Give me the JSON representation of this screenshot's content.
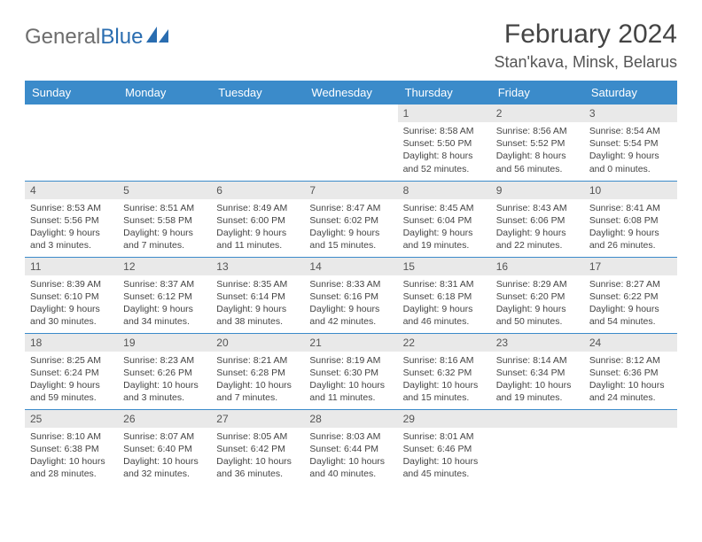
{
  "logo": {
    "word1": "General",
    "word2": "Blue"
  },
  "title": "February 2024",
  "location": "Stan'kava, Minsk, Belarus",
  "colors": {
    "header_bg": "#3b8bca",
    "header_fg": "#ffffff",
    "daynum_bg": "#e9e9e9",
    "border": "#3b8bca",
    "logo_blue": "#2a6db0",
    "logo_gray": "#6d6d6d"
  },
  "daysOfWeek": [
    "Sunday",
    "Monday",
    "Tuesday",
    "Wednesday",
    "Thursday",
    "Friday",
    "Saturday"
  ],
  "weeks": [
    [
      null,
      null,
      null,
      null,
      {
        "n": "1",
        "sr": "8:58 AM",
        "ss": "5:50 PM",
        "dl": "8 hours and 52 minutes."
      },
      {
        "n": "2",
        "sr": "8:56 AM",
        "ss": "5:52 PM",
        "dl": "8 hours and 56 minutes."
      },
      {
        "n": "3",
        "sr": "8:54 AM",
        "ss": "5:54 PM",
        "dl": "9 hours and 0 minutes."
      }
    ],
    [
      {
        "n": "4",
        "sr": "8:53 AM",
        "ss": "5:56 PM",
        "dl": "9 hours and 3 minutes."
      },
      {
        "n": "5",
        "sr": "8:51 AM",
        "ss": "5:58 PM",
        "dl": "9 hours and 7 minutes."
      },
      {
        "n": "6",
        "sr": "8:49 AM",
        "ss": "6:00 PM",
        "dl": "9 hours and 11 minutes."
      },
      {
        "n": "7",
        "sr": "8:47 AM",
        "ss": "6:02 PM",
        "dl": "9 hours and 15 minutes."
      },
      {
        "n": "8",
        "sr": "8:45 AM",
        "ss": "6:04 PM",
        "dl": "9 hours and 19 minutes."
      },
      {
        "n": "9",
        "sr": "8:43 AM",
        "ss": "6:06 PM",
        "dl": "9 hours and 22 minutes."
      },
      {
        "n": "10",
        "sr": "8:41 AM",
        "ss": "6:08 PM",
        "dl": "9 hours and 26 minutes."
      }
    ],
    [
      {
        "n": "11",
        "sr": "8:39 AM",
        "ss": "6:10 PM",
        "dl": "9 hours and 30 minutes."
      },
      {
        "n": "12",
        "sr": "8:37 AM",
        "ss": "6:12 PM",
        "dl": "9 hours and 34 minutes."
      },
      {
        "n": "13",
        "sr": "8:35 AM",
        "ss": "6:14 PM",
        "dl": "9 hours and 38 minutes."
      },
      {
        "n": "14",
        "sr": "8:33 AM",
        "ss": "6:16 PM",
        "dl": "9 hours and 42 minutes."
      },
      {
        "n": "15",
        "sr": "8:31 AM",
        "ss": "6:18 PM",
        "dl": "9 hours and 46 minutes."
      },
      {
        "n": "16",
        "sr": "8:29 AM",
        "ss": "6:20 PM",
        "dl": "9 hours and 50 minutes."
      },
      {
        "n": "17",
        "sr": "8:27 AM",
        "ss": "6:22 PM",
        "dl": "9 hours and 54 minutes."
      }
    ],
    [
      {
        "n": "18",
        "sr": "8:25 AM",
        "ss": "6:24 PM",
        "dl": "9 hours and 59 minutes."
      },
      {
        "n": "19",
        "sr": "8:23 AM",
        "ss": "6:26 PM",
        "dl": "10 hours and 3 minutes."
      },
      {
        "n": "20",
        "sr": "8:21 AM",
        "ss": "6:28 PM",
        "dl": "10 hours and 7 minutes."
      },
      {
        "n": "21",
        "sr": "8:19 AM",
        "ss": "6:30 PM",
        "dl": "10 hours and 11 minutes."
      },
      {
        "n": "22",
        "sr": "8:16 AM",
        "ss": "6:32 PM",
        "dl": "10 hours and 15 minutes."
      },
      {
        "n": "23",
        "sr": "8:14 AM",
        "ss": "6:34 PM",
        "dl": "10 hours and 19 minutes."
      },
      {
        "n": "24",
        "sr": "8:12 AM",
        "ss": "6:36 PM",
        "dl": "10 hours and 24 minutes."
      }
    ],
    [
      {
        "n": "25",
        "sr": "8:10 AM",
        "ss": "6:38 PM",
        "dl": "10 hours and 28 minutes."
      },
      {
        "n": "26",
        "sr": "8:07 AM",
        "ss": "6:40 PM",
        "dl": "10 hours and 32 minutes."
      },
      {
        "n": "27",
        "sr": "8:05 AM",
        "ss": "6:42 PM",
        "dl": "10 hours and 36 minutes."
      },
      {
        "n": "28",
        "sr": "8:03 AM",
        "ss": "6:44 PM",
        "dl": "10 hours and 40 minutes."
      },
      {
        "n": "29",
        "sr": "8:01 AM",
        "ss": "6:46 PM",
        "dl": "10 hours and 45 minutes."
      },
      null,
      null
    ]
  ],
  "labels": {
    "sunrise": "Sunrise: ",
    "sunset": "Sunset: ",
    "daylight": "Daylight: "
  }
}
